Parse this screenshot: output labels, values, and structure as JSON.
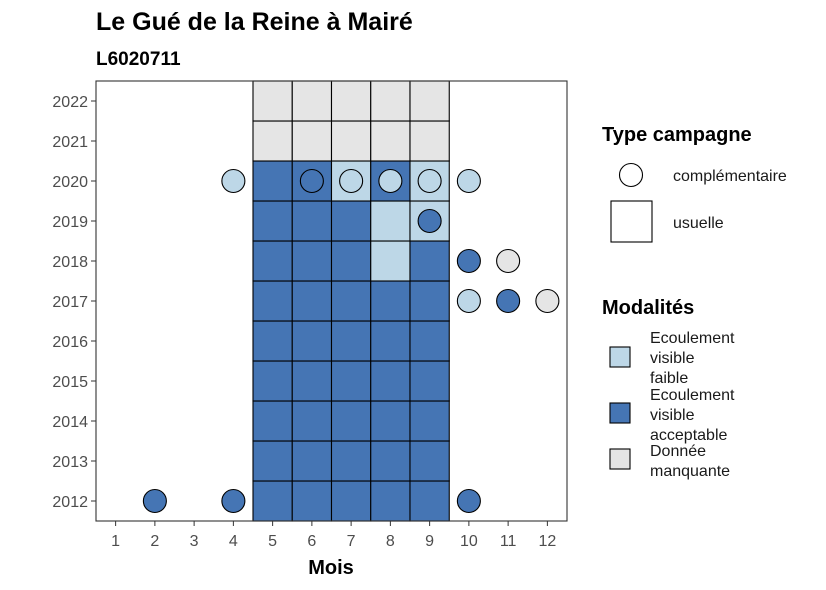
{
  "chart_data": {
    "type": "heatmap",
    "title": "Le Gué de la Reine à Mairé",
    "subtitle": "L6020711",
    "xlabel": "Mois",
    "ylabel": "",
    "x_ticks": [
      "1",
      "2",
      "3",
      "4",
      "5",
      "6",
      "7",
      "8",
      "9",
      "10",
      "11",
      "12"
    ],
    "y_ticks": [
      "2012",
      "2013",
      "2014",
      "2015",
      "2016",
      "2017",
      "2018",
      "2019",
      "2020",
      "2021",
      "2022"
    ],
    "xlim": [
      0.5,
      12.5
    ],
    "ylim": [
      2011.5,
      2022.5
    ],
    "grid": false,
    "colors": {
      "faible": "#bdd7e7",
      "acceptable": "#4575b4",
      "manquante": "#e5e5e5"
    },
    "legend_shape": {
      "title": "Type campagne",
      "items": [
        {
          "shape": "circle",
          "label": "complémentaire"
        },
        {
          "shape": "square",
          "label": "usuelle"
        }
      ]
    },
    "legend_fill": {
      "title": "Modalités",
      "items": [
        {
          "key": "faible",
          "label_lines": [
            "Ecoulement",
            "visible",
            "faible"
          ]
        },
        {
          "key": "acceptable",
          "label_lines": [
            "Ecoulement",
            "visible",
            "acceptable"
          ]
        },
        {
          "key": "manquante",
          "label_lines": [
            "Donnée",
            "manquante"
          ]
        }
      ]
    },
    "usuelle": [
      {
        "year": 2012,
        "month": 5,
        "value": "acceptable"
      },
      {
        "year": 2012,
        "month": 6,
        "value": "acceptable"
      },
      {
        "year": 2012,
        "month": 7,
        "value": "acceptable"
      },
      {
        "year": 2012,
        "month": 8,
        "value": "acceptable"
      },
      {
        "year": 2012,
        "month": 9,
        "value": "acceptable"
      },
      {
        "year": 2013,
        "month": 5,
        "value": "acceptable"
      },
      {
        "year": 2013,
        "month": 6,
        "value": "acceptable"
      },
      {
        "year": 2013,
        "month": 7,
        "value": "acceptable"
      },
      {
        "year": 2013,
        "month": 8,
        "value": "acceptable"
      },
      {
        "year": 2013,
        "month": 9,
        "value": "acceptable"
      },
      {
        "year": 2014,
        "month": 5,
        "value": "acceptable"
      },
      {
        "year": 2014,
        "month": 6,
        "value": "acceptable"
      },
      {
        "year": 2014,
        "month": 7,
        "value": "acceptable"
      },
      {
        "year": 2014,
        "month": 8,
        "value": "acceptable"
      },
      {
        "year": 2014,
        "month": 9,
        "value": "acceptable"
      },
      {
        "year": 2015,
        "month": 5,
        "value": "acceptable"
      },
      {
        "year": 2015,
        "month": 6,
        "value": "acceptable"
      },
      {
        "year": 2015,
        "month": 7,
        "value": "acceptable"
      },
      {
        "year": 2015,
        "month": 8,
        "value": "acceptable"
      },
      {
        "year": 2015,
        "month": 9,
        "value": "acceptable"
      },
      {
        "year": 2016,
        "month": 5,
        "value": "acceptable"
      },
      {
        "year": 2016,
        "month": 6,
        "value": "acceptable"
      },
      {
        "year": 2016,
        "month": 7,
        "value": "acceptable"
      },
      {
        "year": 2016,
        "month": 8,
        "value": "acceptable"
      },
      {
        "year": 2016,
        "month": 9,
        "value": "acceptable"
      },
      {
        "year": 2017,
        "month": 5,
        "value": "acceptable"
      },
      {
        "year": 2017,
        "month": 6,
        "value": "acceptable"
      },
      {
        "year": 2017,
        "month": 7,
        "value": "acceptable"
      },
      {
        "year": 2017,
        "month": 8,
        "value": "acceptable"
      },
      {
        "year": 2017,
        "month": 9,
        "value": "acceptable"
      },
      {
        "year": 2018,
        "month": 5,
        "value": "acceptable"
      },
      {
        "year": 2018,
        "month": 6,
        "value": "acceptable"
      },
      {
        "year": 2018,
        "month": 7,
        "value": "acceptable"
      },
      {
        "year": 2018,
        "month": 8,
        "value": "faible"
      },
      {
        "year": 2018,
        "month": 9,
        "value": "acceptable"
      },
      {
        "year": 2019,
        "month": 5,
        "value": "acceptable"
      },
      {
        "year": 2019,
        "month": 6,
        "value": "acceptable"
      },
      {
        "year": 2019,
        "month": 7,
        "value": "acceptable"
      },
      {
        "year": 2019,
        "month": 8,
        "value": "faible"
      },
      {
        "year": 2019,
        "month": 9,
        "value": "faible"
      },
      {
        "year": 2020,
        "month": 5,
        "value": "acceptable"
      },
      {
        "year": 2020,
        "month": 6,
        "value": "acceptable"
      },
      {
        "year": 2020,
        "month": 7,
        "value": "faible"
      },
      {
        "year": 2020,
        "month": 8,
        "value": "acceptable"
      },
      {
        "year": 2020,
        "month": 9,
        "value": "faible"
      },
      {
        "year": 2021,
        "month": 5,
        "value": "manquante"
      },
      {
        "year": 2021,
        "month": 6,
        "value": "manquante"
      },
      {
        "year": 2021,
        "month": 7,
        "value": "manquante"
      },
      {
        "year": 2021,
        "month": 8,
        "value": "manquante"
      },
      {
        "year": 2021,
        "month": 9,
        "value": "manquante"
      },
      {
        "year": 2022,
        "month": 5,
        "value": "manquante"
      },
      {
        "year": 2022,
        "month": 6,
        "value": "manquante"
      },
      {
        "year": 2022,
        "month": 7,
        "value": "manquante"
      },
      {
        "year": 2022,
        "month": 8,
        "value": "manquante"
      },
      {
        "year": 2022,
        "month": 9,
        "value": "manquante"
      }
    ],
    "complementaire": [
      {
        "year": 2012,
        "month": 2,
        "value": "acceptable"
      },
      {
        "year": 2012,
        "month": 4,
        "value": "acceptable"
      },
      {
        "year": 2012,
        "month": 10,
        "value": "acceptable"
      },
      {
        "year": 2017,
        "month": 10,
        "value": "faible"
      },
      {
        "year": 2017,
        "month": 11,
        "value": "acceptable"
      },
      {
        "year": 2017,
        "month": 12,
        "value": "manquante"
      },
      {
        "year": 2018,
        "month": 10,
        "value": "acceptable"
      },
      {
        "year": 2018,
        "month": 11,
        "value": "manquante"
      },
      {
        "year": 2019,
        "month": 9,
        "value": "acceptable"
      },
      {
        "year": 2020,
        "month": 4,
        "value": "faible"
      },
      {
        "year": 2020,
        "month": 6,
        "value": "acceptable"
      },
      {
        "year": 2020,
        "month": 7,
        "value": "faible"
      },
      {
        "year": 2020,
        "month": 8,
        "value": "faible"
      },
      {
        "year": 2020,
        "month": 9,
        "value": "faible"
      },
      {
        "year": 2020,
        "month": 10,
        "value": "faible"
      }
    ]
  }
}
